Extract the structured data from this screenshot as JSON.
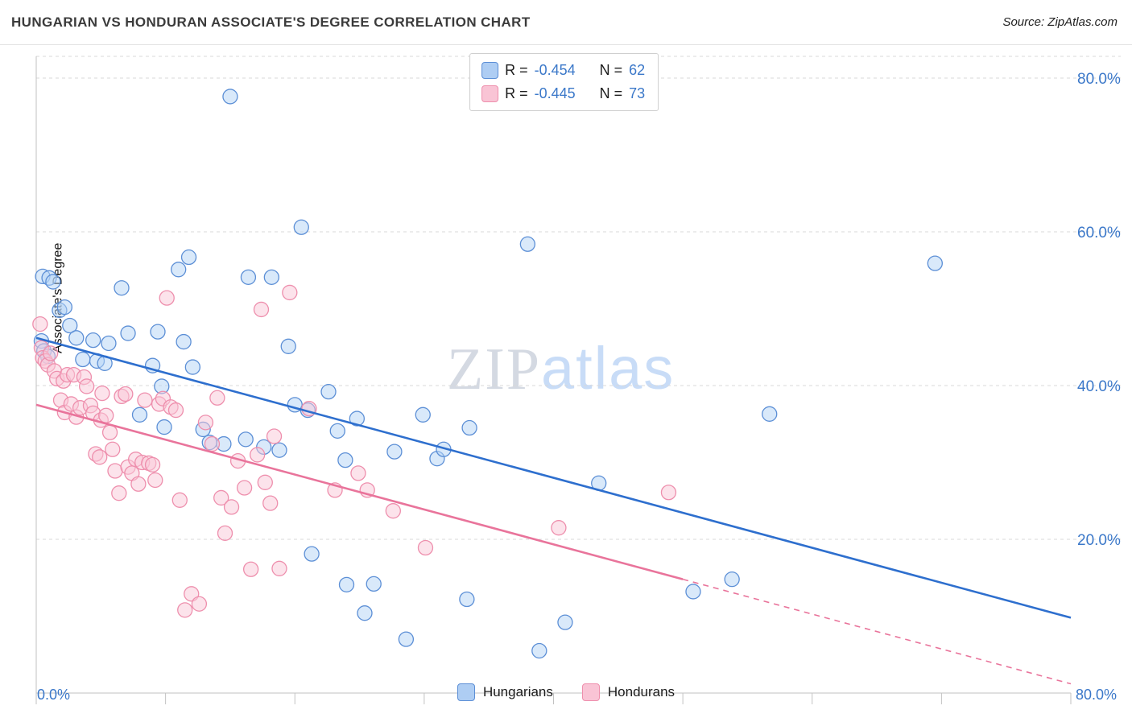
{
  "header": {
    "title": "HUNGARIAN VS HONDURAN ASSOCIATE'S DEGREE CORRELATION CHART",
    "source": "Source: ZipAtlas.com"
  },
  "watermark": {
    "part1": "ZIP",
    "part2": "atlas"
  },
  "legend_box": {
    "series": [
      {
        "r_label": "R =",
        "r_value": "-0.454",
        "n_label": "N =",
        "n_value": "62"
      },
      {
        "r_label": "R =",
        "r_value": "-0.445",
        "n_label": "N =",
        "n_value": "73"
      }
    ]
  },
  "bottom_legend": {
    "items": [
      {
        "label": "Hungarians"
      },
      {
        "label": "Hondurans"
      }
    ]
  },
  "chart_data": {
    "type": "scatter",
    "title": "HUNGARIAN VS HONDURAN ASSOCIATE'S DEGREE CORRELATION CHART",
    "xlabel": "",
    "ylabel": "Associate's Degree",
    "xlim": [
      0,
      80
    ],
    "ylim": [
      0,
      82.8
    ],
    "x_axis_labels": [
      "0.0%",
      "80.0%"
    ],
    "y_ticks": [
      20,
      40,
      60,
      80
    ],
    "y_tick_labels": [
      "20.0%",
      "40.0%",
      "60.0%",
      "80.0%"
    ],
    "x_ticks": [
      0,
      10,
      20,
      30,
      40,
      50,
      60,
      70,
      80
    ],
    "grid": "horizontal-dashed",
    "legend_position": "top-center",
    "colors": {
      "blue_fill": "#b3d3f5",
      "blue_stroke": "#5c8fd6",
      "blue_trend": "#2e6fce",
      "pink_fill": "#f9c8d8",
      "pink_stroke": "#ee8fad",
      "pink_trend": "#e9749b",
      "grid": "#d9d9d9",
      "axis": "#c2c2c2",
      "tick_label": "#3b78c9"
    },
    "series": [
      {
        "name": "Hungarians",
        "r": -0.454,
        "n": 62,
        "points": [
          [
            0.5,
            54.2
          ],
          [
            1.0,
            54.0
          ],
          [
            1.3,
            53.5
          ],
          [
            1.8,
            49.8
          ],
          [
            2.2,
            50.2
          ],
          [
            0.4,
            45.8
          ],
          [
            0.6,
            44.5
          ],
          [
            0.9,
            43.8
          ],
          [
            2.6,
            47.8
          ],
          [
            3.1,
            46.2
          ],
          [
            3.6,
            43.4
          ],
          [
            4.4,
            45.9
          ],
          [
            5.6,
            45.5
          ],
          [
            4.7,
            43.2
          ],
          [
            5.3,
            42.9
          ],
          [
            6.6,
            52.7
          ],
          [
            7.1,
            46.8
          ],
          [
            8.0,
            36.2
          ],
          [
            9.4,
            47.0
          ],
          [
            9.0,
            42.6
          ],
          [
            9.7,
            39.9
          ],
          [
            11.0,
            55.1
          ],
          [
            11.8,
            56.7
          ],
          [
            11.4,
            45.7
          ],
          [
            12.1,
            42.4
          ],
          [
            9.9,
            34.6
          ],
          [
            12.9,
            34.3
          ],
          [
            13.4,
            32.6
          ],
          [
            14.5,
            32.4
          ],
          [
            15.0,
            77.6
          ],
          [
            16.4,
            54.1
          ],
          [
            18.2,
            54.1
          ],
          [
            19.5,
            45.1
          ],
          [
            20.5,
            60.6
          ],
          [
            20.0,
            37.5
          ],
          [
            21.0,
            36.8
          ],
          [
            22.6,
            39.2
          ],
          [
            16.2,
            33.0
          ],
          [
            17.6,
            32.0
          ],
          [
            18.8,
            31.6
          ],
          [
            21.3,
            18.1
          ],
          [
            23.3,
            34.1
          ],
          [
            24.0,
            14.1
          ],
          [
            26.1,
            14.2
          ],
          [
            23.9,
            30.3
          ],
          [
            24.8,
            35.7
          ],
          [
            25.4,
            10.4
          ],
          [
            27.7,
            31.4
          ],
          [
            28.6,
            7.0
          ],
          [
            29.9,
            36.2
          ],
          [
            31.0,
            30.5
          ],
          [
            31.5,
            31.7
          ],
          [
            33.3,
            12.2
          ],
          [
            33.5,
            34.5
          ],
          [
            38.0,
            58.4
          ],
          [
            38.9,
            5.5
          ],
          [
            40.9,
            9.2
          ],
          [
            43.5,
            27.3
          ],
          [
            50.8,
            13.2
          ],
          [
            53.8,
            14.8
          ],
          [
            56.7,
            36.3
          ],
          [
            69.5,
            55.9
          ]
        ]
      },
      {
        "name": "Hondurans",
        "r": -0.445,
        "n": 73,
        "points": [
          [
            0.3,
            48.0
          ],
          [
            0.4,
            44.9
          ],
          [
            0.5,
            43.6
          ],
          [
            0.7,
            43.2
          ],
          [
            0.9,
            42.7
          ],
          [
            1.1,
            44.2
          ],
          [
            1.4,
            41.9
          ],
          [
            1.6,
            40.9
          ],
          [
            1.9,
            38.1
          ],
          [
            2.1,
            40.6
          ],
          [
            2.2,
            36.5
          ],
          [
            2.4,
            41.4
          ],
          [
            2.7,
            37.6
          ],
          [
            2.9,
            41.4
          ],
          [
            3.1,
            35.9
          ],
          [
            3.4,
            37.1
          ],
          [
            3.7,
            41.1
          ],
          [
            3.9,
            39.9
          ],
          [
            4.2,
            37.4
          ],
          [
            4.4,
            36.4
          ],
          [
            4.6,
            31.1
          ],
          [
            4.9,
            30.7
          ],
          [
            5.0,
            35.5
          ],
          [
            5.1,
            39.0
          ],
          [
            5.4,
            36.1
          ],
          [
            5.7,
            33.9
          ],
          [
            5.9,
            31.7
          ],
          [
            6.1,
            28.9
          ],
          [
            6.4,
            26.0
          ],
          [
            6.6,
            38.6
          ],
          [
            6.9,
            38.9
          ],
          [
            7.1,
            29.4
          ],
          [
            7.4,
            28.6
          ],
          [
            7.7,
            30.4
          ],
          [
            7.9,
            27.2
          ],
          [
            8.2,
            30.0
          ],
          [
            8.4,
            38.1
          ],
          [
            8.7,
            29.9
          ],
          [
            9.0,
            29.7
          ],
          [
            9.2,
            27.7
          ],
          [
            9.5,
            37.6
          ],
          [
            9.8,
            38.3
          ],
          [
            10.1,
            51.4
          ],
          [
            10.4,
            37.2
          ],
          [
            10.8,
            36.8
          ],
          [
            11.1,
            25.1
          ],
          [
            11.5,
            10.8
          ],
          [
            12.0,
            12.9
          ],
          [
            12.6,
            11.6
          ],
          [
            13.1,
            35.2
          ],
          [
            13.6,
            32.4
          ],
          [
            14.0,
            38.4
          ],
          [
            14.3,
            25.4
          ],
          [
            14.6,
            20.8
          ],
          [
            15.1,
            24.2
          ],
          [
            15.6,
            30.2
          ],
          [
            16.1,
            26.7
          ],
          [
            16.6,
            16.1
          ],
          [
            17.1,
            31.0
          ],
          [
            17.4,
            49.9
          ],
          [
            17.7,
            27.4
          ],
          [
            18.1,
            24.7
          ],
          [
            18.4,
            33.4
          ],
          [
            18.8,
            16.2
          ],
          [
            19.6,
            52.1
          ],
          [
            21.1,
            37.0
          ],
          [
            23.1,
            26.4
          ],
          [
            24.9,
            28.6
          ],
          [
            25.6,
            26.4
          ],
          [
            27.6,
            23.7
          ],
          [
            30.1,
            18.9
          ],
          [
            40.4,
            21.5
          ],
          [
            48.9,
            26.1
          ]
        ]
      }
    ],
    "trendlines": [
      {
        "series": "Hungarians",
        "x1": 0,
        "y1": 46.2,
        "x2": 80,
        "y2": 9.8,
        "style": "solid"
      },
      {
        "series": "Hondurans",
        "x1": 0,
        "y1": 37.5,
        "x2": 50,
        "y2": 14.8,
        "style": "solid"
      },
      {
        "series": "Hondurans",
        "x1": 50,
        "y1": 14.8,
        "x2": 80,
        "y2": 1.2,
        "style": "dashed"
      }
    ]
  }
}
